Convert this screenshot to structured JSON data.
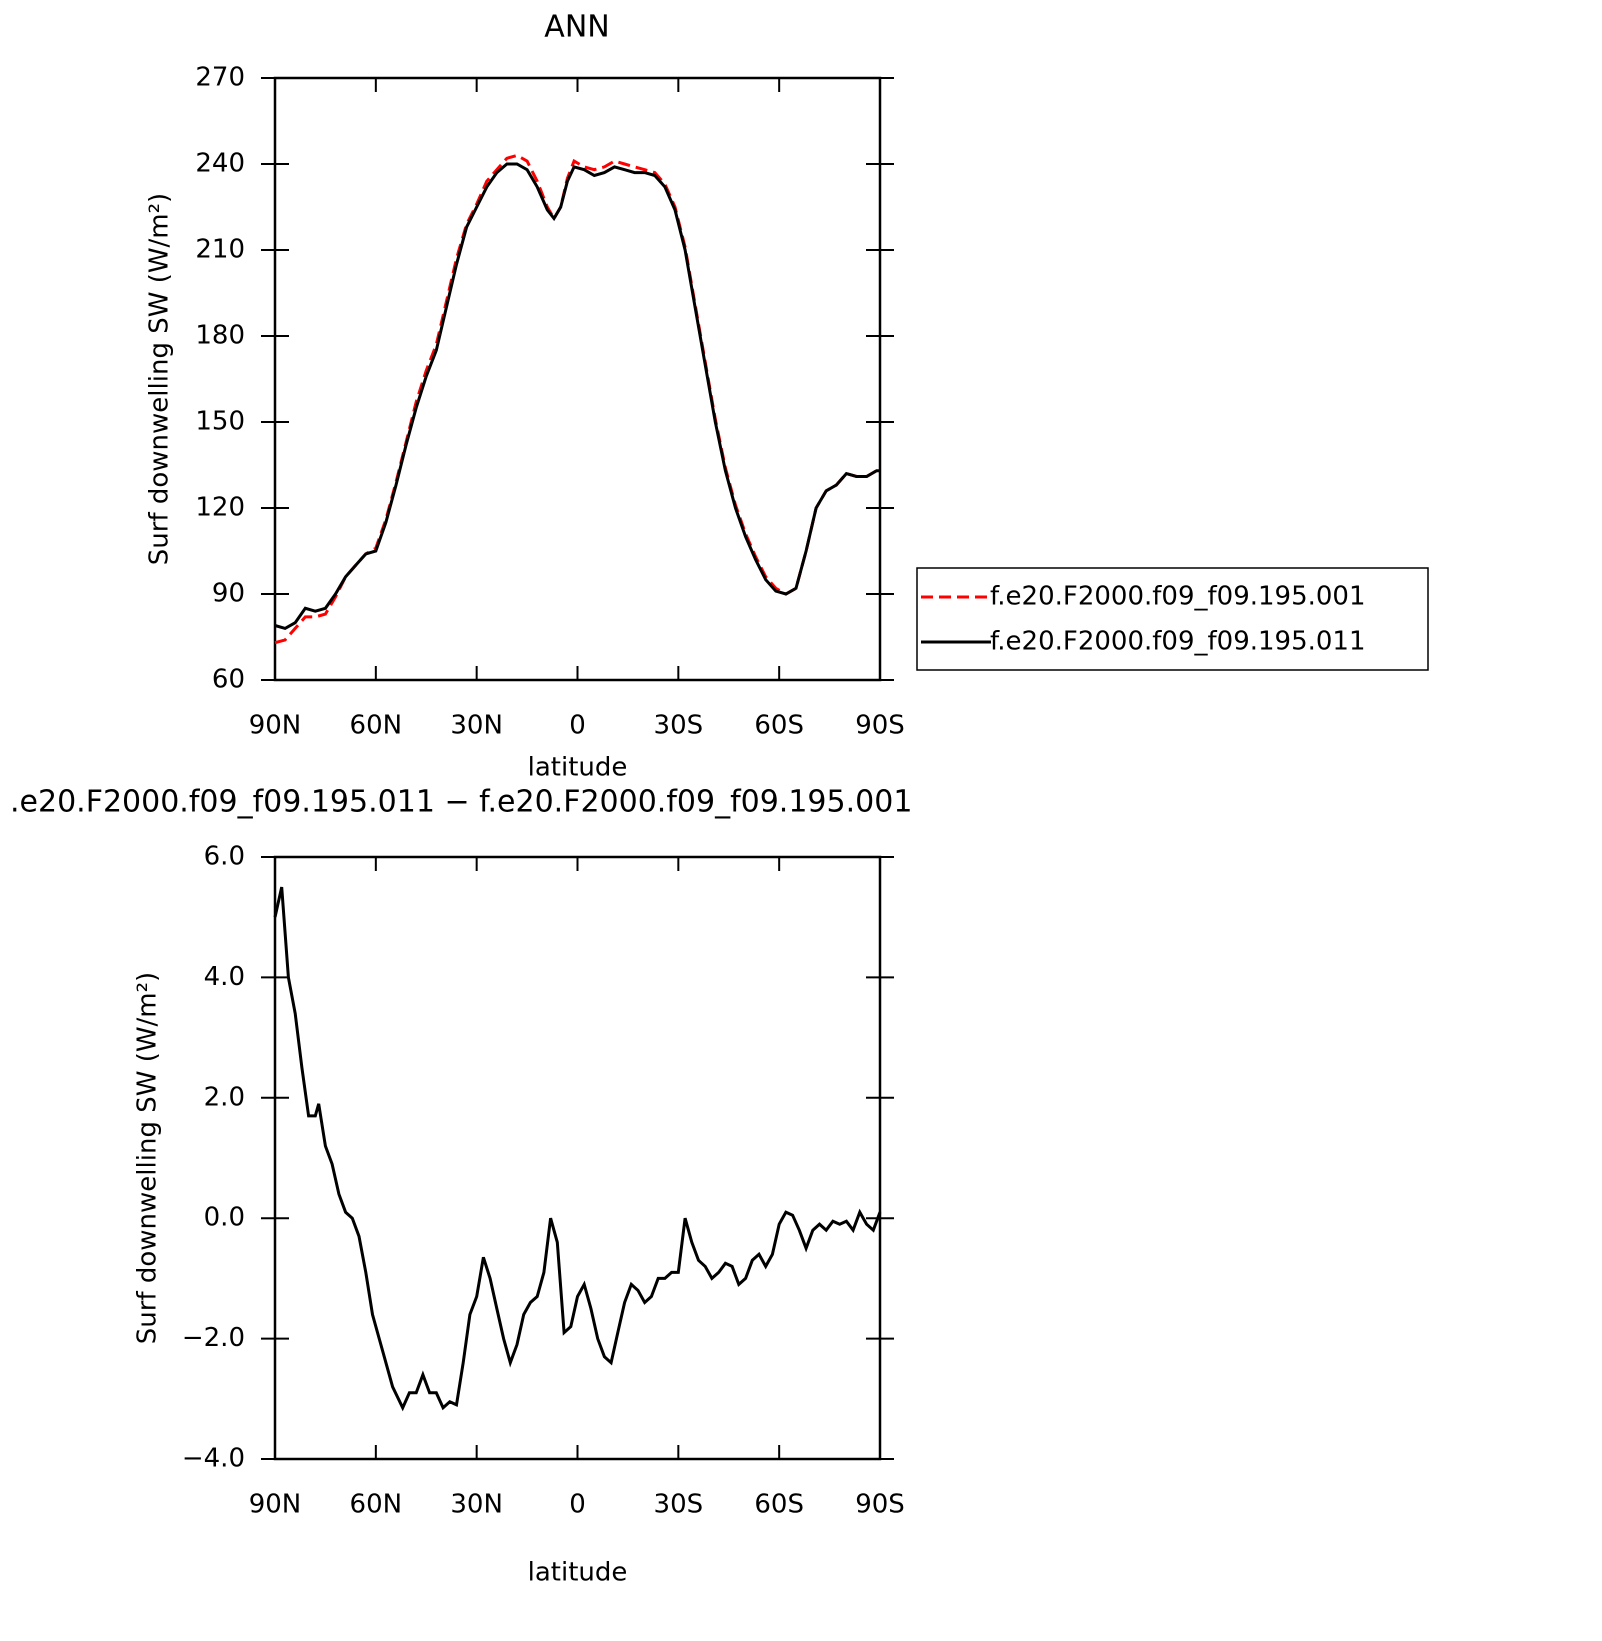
{
  "chart_data": [
    {
      "type": "line",
      "title": "ANN",
      "xlabel": "latitude",
      "ylabel": "Surf downwelling SW (W/m²)",
      "xlim": [
        90,
        -90
      ],
      "ylim": [
        60,
        270
      ],
      "xticks": [
        {
          "value": 90,
          "label": "90N"
        },
        {
          "value": 60,
          "label": "60N"
        },
        {
          "value": 30,
          "label": "30N"
        },
        0,
        {
          "value": -30,
          "label": "30S"
        },
        {
          "value": -60,
          "label": "60S"
        },
        {
          "value": -90,
          "label": "90S"
        }
      ],
      "yticks": [
        60,
        90,
        120,
        150,
        180,
        210,
        240,
        270
      ],
      "x": [
        90,
        87,
        84,
        81,
        78,
        75,
        72,
        69,
        66,
        63,
        60,
        57,
        54,
        51,
        48,
        45,
        42,
        39,
        36,
        33,
        30,
        27,
        24,
        21,
        18,
        15,
        12,
        9,
        7,
        5,
        3,
        1,
        -2,
        -5,
        -8,
        -11,
        -14,
        -17,
        -20,
        -23,
        -26,
        -29,
        -32,
        -35,
        -38,
        -41,
        -44,
        -47,
        -50,
        -53,
        -56,
        -59,
        -62,
        -65,
        -68,
        -71,
        -74,
        -77,
        -80,
        -83,
        -86,
        -89,
        -90
      ],
      "legend": "right",
      "series": [
        {
          "name": "f.e20.F2000.f09_f09.195.001",
          "color": "#ff0000",
          "dash": true,
          "values": [
            73,
            74,
            78,
            82,
            82,
            83,
            89,
            96,
            100,
            104,
            106,
            116,
            129,
            143,
            157,
            168,
            177,
            192,
            207,
            219,
            226,
            234,
            238,
            242,
            243,
            241,
            234,
            225,
            221,
            225,
            235,
            241,
            239,
            238,
            239,
            241,
            240,
            239,
            238,
            237,
            233,
            225,
            211,
            191,
            171,
            151,
            134,
            121,
            111,
            103,
            96,
            92,
            90,
            92,
            105,
            120,
            126,
            128,
            132,
            131,
            131,
            133,
            133
          ]
        },
        {
          "name": "f.e20.F2000.f09_f09.195.011",
          "color": "#000000",
          "dash": false,
          "values": [
            79,
            78,
            80,
            85,
            84,
            85,
            90,
            96,
            100,
            104,
            105,
            115,
            128,
            142,
            155,
            166,
            175,
            190,
            205,
            218,
            225,
            232,
            237,
            240,
            240,
            238,
            232,
            224,
            221,
            225,
            234,
            239,
            238,
            236,
            237,
            239,
            238,
            237,
            237,
            236,
            232,
            224,
            210,
            190,
            170,
            150,
            133,
            120,
            110,
            102,
            95,
            91,
            90,
            92,
            105,
            120,
            126,
            128,
            132,
            131,
            131,
            133,
            133
          ]
        }
      ]
    },
    {
      "type": "line",
      "title": ".e20.F2000.f09_f09.195.011 − f.e20.F2000.f09_f09.195.001",
      "xlabel": "latitude",
      "ylabel": "Surf downwelling SW (W/m²)",
      "xlim": [
        90,
        -90
      ],
      "ylim": [
        -4,
        6
      ],
      "xticks": [
        {
          "value": 90,
          "label": "90N"
        },
        {
          "value": 60,
          "label": "60N"
        },
        {
          "value": 30,
          "label": "30N"
        },
        0,
        {
          "value": -30,
          "label": "30S"
        },
        {
          "value": -60,
          "label": "60S"
        },
        {
          "value": -90,
          "label": "90S"
        }
      ],
      "yticks": [
        {
          "value": -4,
          "label": "−4.0"
        },
        {
          "value": -2,
          "label": "−2.0"
        },
        {
          "value": 0,
          "label": "0.0"
        },
        {
          "value": 2,
          "label": "2.0"
        },
        {
          "value": 4,
          "label": "4.0"
        },
        {
          "value": 6,
          "label": "6.0"
        }
      ],
      "x": [
        90,
        88,
        86,
        84,
        82,
        80,
        78,
        77,
        75,
        73,
        71,
        69,
        67,
        65,
        63,
        61,
        59,
        57,
        55,
        52,
        50,
        48,
        46,
        44,
        42,
        40,
        38,
        36,
        34,
        32,
        30,
        28,
        26,
        24,
        22,
        20,
        18,
        16,
        14,
        12,
        10,
        8,
        6,
        4,
        2,
        0,
        -2,
        -4,
        -6,
        -8,
        -10,
        -12,
        -14,
        -16,
        -18,
        -20,
        -22,
        -24,
        -26,
        -28,
        -30,
        -32,
        -34,
        -36,
        -38,
        -40,
        -42,
        -44,
        -46,
        -48,
        -50,
        -52,
        -54,
        -56,
        -58,
        -60,
        -62,
        -64,
        -66,
        -68,
        -70,
        -72,
        -74,
        -76,
        -78,
        -80,
        -82,
        -84,
        -86,
        -88,
        -90
      ],
      "series": [
        {
          "color": "#000000",
          "dash": false,
          "values": [
            5.0,
            5.5,
            4.0,
            3.4,
            2.5,
            1.7,
            1.7,
            1.9,
            1.2,
            0.9,
            0.4,
            0.1,
            0.0,
            -0.3,
            -0.9,
            -1.6,
            -2.0,
            -2.4,
            -2.8,
            -3.15,
            -2.9,
            -2.9,
            -2.6,
            -2.9,
            -2.9,
            -3.15,
            -3.05,
            -3.1,
            -2.4,
            -1.6,
            -1.3,
            -0.65,
            -1.0,
            -1.5,
            -2.0,
            -2.4,
            -2.1,
            -1.6,
            -1.4,
            -1.3,
            -0.9,
            0.0,
            -0.4,
            -1.9,
            -1.8,
            -1.3,
            -1.1,
            -1.5,
            -2.0,
            -2.3,
            -2.4,
            -1.9,
            -1.4,
            -1.1,
            -1.2,
            -1.4,
            -1.3,
            -1.0,
            -1.0,
            -0.9,
            -0.9,
            0.0,
            -0.4,
            -0.7,
            -0.8,
            -1.0,
            -0.9,
            -0.75,
            -0.8,
            -1.1,
            -1.0,
            -0.7,
            -0.6,
            -0.8,
            -0.6,
            -0.1,
            0.1,
            0.05,
            -0.2,
            -0.5,
            -0.2,
            -0.1,
            -0.2,
            -0.05,
            -0.1,
            -0.05,
            -0.2,
            0.1,
            -0.1,
            -0.2,
            0.1
          ]
        }
      ]
    }
  ]
}
